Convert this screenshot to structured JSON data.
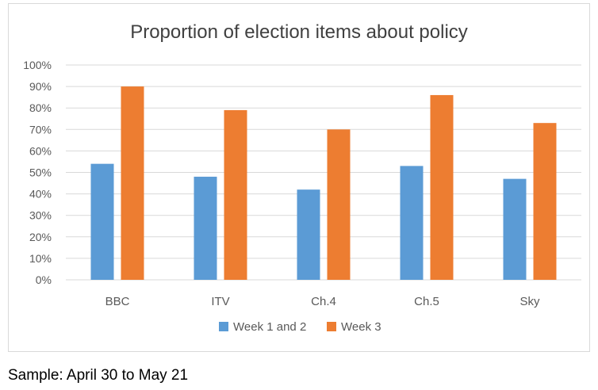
{
  "chart_data": {
    "type": "bar",
    "title": "Proportion of election items about policy",
    "xlabel": "",
    "ylabel": "",
    "categories": [
      "BBC",
      "ITV",
      "Ch.4",
      "Ch.5",
      "Sky"
    ],
    "series": [
      {
        "name": "Week 1 and 2",
        "color": "#5b9bd5",
        "values": [
          54,
          48,
          42,
          53,
          47
        ]
      },
      {
        "name": "Week 3",
        "color": "#ed7d31",
        "values": [
          90,
          79,
          70,
          86,
          73
        ]
      }
    ],
    "ylim": [
      0,
      100
    ],
    "y_ticks": [
      "0%",
      "10%",
      "20%",
      "30%",
      "40%",
      "50%",
      "60%",
      "70%",
      "80%",
      "90%",
      "100%"
    ],
    "y_unit": "%",
    "grid": true,
    "legend_position": "bottom"
  },
  "footnote": "Sample: April 30 to May 21"
}
